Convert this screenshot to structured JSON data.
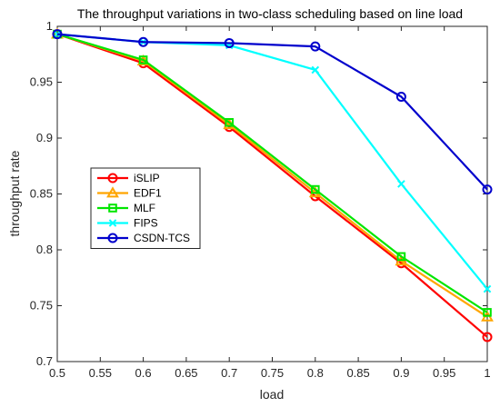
{
  "chart_data": {
    "type": "line",
    "title": "The throughput variations in two-class scheduling based on line load",
    "xlabel": "load",
    "ylabel": "throughput rate",
    "xlim": [
      0.5,
      1
    ],
    "ylim": [
      0.7,
      1
    ],
    "x": [
      0.5,
      0.6,
      0.7,
      0.8,
      0.9,
      1.0
    ],
    "x_ticks": [
      "0.5",
      "0.55",
      "0.6",
      "0.65",
      "0.7",
      "0.75",
      "0.8",
      "0.85",
      "0.9",
      "0.95",
      "1"
    ],
    "y_ticks": [
      "0.7",
      "0.75",
      "0.8",
      "0.85",
      "0.9",
      "0.95",
      "1"
    ],
    "grid": false,
    "legend_position": "left",
    "series": [
      {
        "name": "iSLIP",
        "color": "#ff0000",
        "marker": "circle",
        "values": [
          0.993,
          0.967,
          0.91,
          0.848,
          0.788,
          0.722
        ]
      },
      {
        "name": "EDF1",
        "color": "#ffa500",
        "marker": "triangle",
        "values": [
          0.993,
          0.969,
          0.912,
          0.851,
          0.79,
          0.74
        ]
      },
      {
        "name": "MLF",
        "color": "#00e600",
        "marker": "square",
        "values": [
          0.993,
          0.97,
          0.914,
          0.854,
          0.794,
          0.744
        ]
      },
      {
        "name": "FIPS",
        "color": "#00ffff",
        "marker": "x",
        "values": [
          0.993,
          0.986,
          0.983,
          0.961,
          0.859,
          0.765
        ]
      },
      {
        "name": "CSDN-TCS",
        "color": "#0000cc",
        "marker": "circle",
        "values": [
          0.993,
          0.986,
          0.985,
          0.982,
          0.937,
          0.854
        ]
      }
    ]
  }
}
